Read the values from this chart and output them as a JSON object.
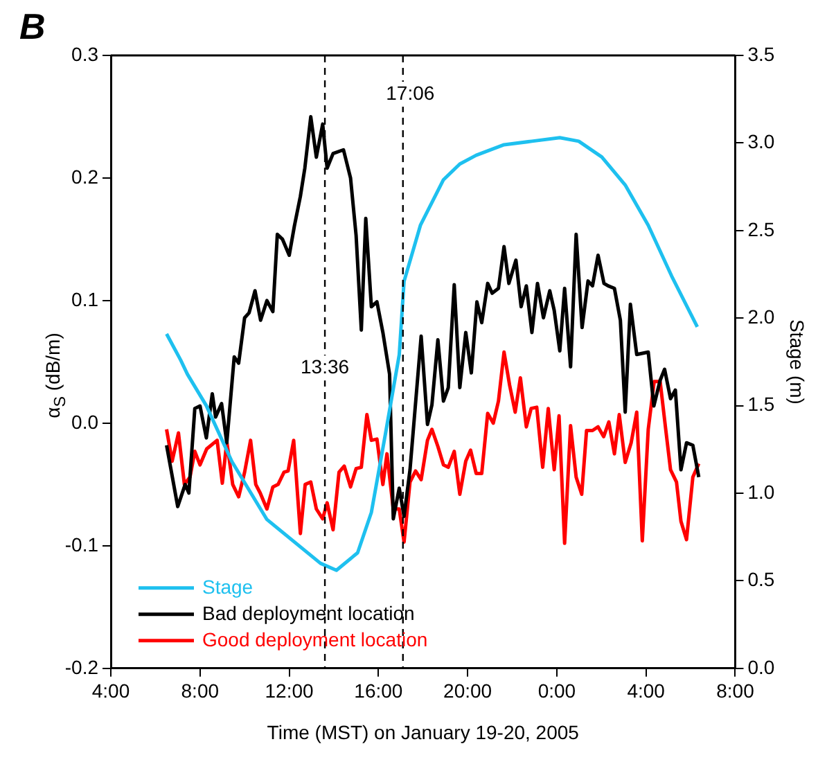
{
  "chart_data": {
    "type": "line",
    "xlabel": "Time (MST) on January 19-20, 2005",
    "ylabel": "α$_{S}$ (dB/m)",
    "y2label": "Stage (m)",
    "annotations": [
      "B"
    ],
    "xlim": [
      "2005-01-19T04:00",
      "2005-01-20T08:00"
    ],
    "xticks": [
      {
        "value": "2005-01-19T04:00",
        "label": "4:00"
      },
      {
        "value": "2005-01-19T08:00",
        "label": "8:00"
      },
      {
        "value": "2005-01-19T12:00",
        "label": "12:00"
      },
      {
        "value": "2005-01-19T16:00",
        "label": "16:00"
      },
      {
        "value": "2005-01-19T20:00",
        "label": "20:00"
      },
      {
        "value": "2005-01-20T00:00",
        "label": "0:00"
      },
      {
        "value": "2005-01-20T04:00",
        "label": "4:00"
      },
      {
        "value": "2005-01-20T08:00",
        "label": "8:00"
      }
    ],
    "ylim": [
      -0.2,
      0.3
    ],
    "yticks": [
      -0.2,
      -0.1,
      {
        "value": 0,
        "label": "0.0"
      },
      0.1,
      0.2,
      0.3
    ],
    "y2lim": [
      0,
      3.5
    ],
    "y2ticks": [
      {
        "value": 0,
        "label": "0.0"
      },
      {
        "value": 0.5,
        "label": "0.5"
      },
      {
        "value": 1,
        "label": "1.0"
      },
      {
        "value": 1.5,
        "label": "1.5"
      },
      {
        "value": 2,
        "label": "2.0"
      },
      {
        "value": 2.5,
        "label": "2.5"
      },
      {
        "value": 3,
        "label": "3.0"
      },
      {
        "value": 3.5,
        "label": "3.5"
      }
    ],
    "ref_lines": [
      {
        "axis": "x",
        "value": "2005-01-19T13:36",
        "label": "13:36",
        "color": "#000000",
        "line_style": "dashed"
      },
      {
        "axis": "x",
        "value": "2005-01-19T17:06",
        "label": "17:06",
        "color": "#000000",
        "line_style": "dashed"
      }
    ],
    "grid": false,
    "legend": "bottom left",
    "marker": "none",
    "line_style": "solid",
    "series": [
      {
        "name": "Stage",
        "color": "#1ec0ef",
        "axis": "y2",
        "x": [
          "2005-01-19T06:30",
          "2005-01-19T07:08",
          "2005-01-19T07:26",
          "2005-01-19T08:17",
          "2005-01-19T09:26",
          "2005-01-19T11:00",
          "2005-01-19T13:24",
          "2005-01-19T14:07",
          "2005-01-19T15:04",
          "2005-01-19T15:41",
          "2005-01-19T16:19",
          "2005-01-19T16:56",
          "2005-01-19T17:09",
          "2005-01-19T17:53",
          "2005-01-19T18:55",
          "2005-01-19T19:39",
          "2005-01-19T20:23",
          "2005-01-19T21:38",
          "2005-01-19T22:53",
          "2005-01-20T00:08",
          "2005-01-20T00:59",
          "2005-01-20T02:01",
          "2005-01-20T03:04",
          "2005-01-20T04:06",
          "2005-01-20T05:09",
          "2005-01-20T06:18"
        ],
        "values": [
          1.91,
          1.76,
          1.68,
          1.5,
          1.18,
          0.85,
          0.6,
          0.56,
          0.66,
          0.89,
          1.34,
          1.79,
          2.21,
          2.53,
          2.79,
          2.88,
          2.93,
          2.99,
          3.01,
          3.03,
          3.01,
          2.92,
          2.76,
          2.53,
          2.24,
          1.95
        ]
      },
      {
        "name": "Bad deployment location",
        "color": "#000000",
        "x": [
          "2005-01-19T06:30",
          "2005-01-19T07:00",
          "2005-01-19T07:20",
          "2005-01-19T07:30",
          "2005-01-19T07:46",
          "2005-01-19T08:00",
          "2005-01-19T08:17",
          "2005-01-19T08:33",
          "2005-01-19T08:42",
          "2005-01-19T08:58",
          "2005-01-19T09:12",
          "2005-01-19T09:32",
          "2005-01-19T09:44",
          "2005-01-19T10:00",
          "2005-01-19T10:12",
          "2005-01-19T10:28",
          "2005-01-19T10:43",
          "2005-01-19T11:00",
          "2005-01-19T11:16",
          "2005-01-19T11:28",
          "2005-01-19T11:42",
          "2005-01-19T12:00",
          "2005-01-19T12:14",
          "2005-01-19T12:30",
          "2005-01-19T12:42",
          "2005-01-19T12:58",
          "2005-01-19T13:13",
          "2005-01-19T13:30",
          "2005-01-19T13:42",
          "2005-01-19T13:58",
          "2005-01-19T14:26",
          "2005-01-19T14:45",
          "2005-01-19T15:00",
          "2005-01-19T15:14",
          "2005-01-19T15:26",
          "2005-01-19T15:41",
          "2005-01-19T15:56",
          "2005-01-19T16:12",
          "2005-01-19T16:30",
          "2005-01-19T16:40",
          "2005-01-19T16:56",
          "2005-01-19T17:09",
          "2005-01-19T17:25",
          "2005-01-19T17:55",
          "2005-01-19T18:12",
          "2005-01-19T18:24",
          "2005-01-19T18:40",
          "2005-01-19T18:55",
          "2005-01-19T19:08",
          "2005-01-19T19:24",
          "2005-01-19T19:39",
          "2005-01-19T19:55",
          "2005-01-19T20:10",
          "2005-01-19T20:25",
          "2005-01-19T20:38",
          "2005-01-19T20:54",
          "2005-01-19T21:06",
          "2005-01-19T21:23",
          "2005-01-19T21:38",
          "2005-01-19T21:51",
          "2005-01-19T22:10",
          "2005-01-19T22:24",
          "2005-01-19T22:38",
          "2005-01-19T22:53",
          "2005-01-19T23:08",
          "2005-01-19T23:24",
          "2005-01-19T23:41",
          "2005-01-19T23:53",
          "2005-01-20T00:08",
          "2005-01-20T00:21",
          "2005-01-20T00:37",
          "2005-01-20T00:52",
          "2005-01-20T01:08",
          "2005-01-20T01:24",
          "2005-01-20T01:36",
          "2005-01-20T01:51",
          "2005-01-20T02:07",
          "2005-01-20T02:18",
          "2005-01-20T02:35",
          "2005-01-20T02:51",
          "2005-01-20T03:04",
          "2005-01-20T03:18",
          "2005-01-20T03:35",
          "2005-01-20T04:06",
          "2005-01-20T04:21",
          "2005-01-20T04:38",
          "2005-01-20T04:50",
          "2005-01-20T05:06",
          "2005-01-20T05:19",
          "2005-01-20T05:34",
          "2005-01-20T05:49",
          "2005-01-20T06:06",
          "2005-01-20T06:22"
        ],
        "values": [
          -0.018,
          -0.068,
          -0.05,
          -0.057,
          0.012,
          0.014,
          -0.012,
          0.024,
          0.005,
          0.016,
          -0.016,
          0.054,
          0.049,
          0.086,
          0.09,
          0.108,
          0.084,
          0.1,
          0.091,
          0.154,
          0.15,
          0.137,
          0.161,
          0.185,
          0.208,
          0.25,
          0.217,
          0.244,
          0.208,
          0.22,
          0.223,
          0.2,
          0.153,
          0.076,
          0.167,
          0.095,
          0.099,
          0.074,
          0.04,
          -0.078,
          -0.053,
          -0.076,
          -0.038,
          0.071,
          -0.001,
          0.015,
          0.068,
          0.018,
          0.029,
          0.113,
          0.029,
          0.074,
          0.041,
          0.099,
          0.082,
          0.114,
          0.106,
          0.11,
          0.144,
          0.114,
          0.133,
          0.095,
          0.112,
          0.074,
          0.114,
          0.086,
          0.108,
          0.092,
          0.059,
          0.11,
          0.046,
          0.154,
          0.078,
          0.116,
          0.112,
          0.137,
          0.114,
          0.112,
          0.11,
          0.084,
          0.009,
          0.097,
          0.056,
          0.058,
          0.014,
          0.035,
          0.044,
          0.02,
          0.027,
          -0.038,
          -0.016,
          -0.018,
          -0.044
        ]
      },
      {
        "name": "Good deployment location",
        "color": "#ff0000",
        "x": [
          "2005-01-19T06:30",
          "2005-01-19T06:45",
          "2005-01-19T07:02",
          "2005-01-19T07:18",
          "2005-01-19T07:33",
          "2005-01-19T07:46",
          "2005-01-19T08:00",
          "2005-01-19T08:18",
          "2005-01-19T08:46",
          "2005-01-19T09:00",
          "2005-01-19T09:12",
          "2005-01-19T09:28",
          "2005-01-19T09:44",
          "2005-01-19T10:00",
          "2005-01-19T10:16",
          "2005-01-19T10:30",
          "2005-01-19T10:42",
          "2005-01-19T11:00",
          "2005-01-19T11:16",
          "2005-01-19T11:30",
          "2005-01-19T11:46",
          "2005-01-19T11:57",
          "2005-01-19T12:12",
          "2005-01-19T12:30",
          "2005-01-19T12:43",
          "2005-01-19T12:58",
          "2005-01-19T13:13",
          "2005-01-19T13:30",
          "2005-01-19T13:42",
          "2005-01-19T13:58",
          "2005-01-19T14:14",
          "2005-01-19T14:28",
          "2005-01-19T14:45",
          "2005-01-19T15:00",
          "2005-01-19T15:14",
          "2005-01-19T15:29",
          "2005-01-19T15:41",
          "2005-01-19T15:56",
          "2005-01-19T16:12",
          "2005-01-19T16:23",
          "2005-01-19T16:40",
          "2005-01-19T16:56",
          "2005-01-19T17:09",
          "2005-01-19T17:25",
          "2005-01-19T17:40",
          "2005-01-19T17:55",
          "2005-01-19T18:12",
          "2005-01-19T18:24",
          "2005-01-19T18:40",
          "2005-01-19T18:55",
          "2005-01-19T19:08",
          "2005-01-19T19:24",
          "2005-01-19T19:39",
          "2005-01-19T19:55",
          "2005-01-19T20:08",
          "2005-01-19T20:23",
          "2005-01-19T20:38",
          "2005-01-19T20:54",
          "2005-01-19T21:09",
          "2005-01-19T21:23",
          "2005-01-19T21:38",
          "2005-01-19T21:53",
          "2005-01-19T22:08",
          "2005-01-19T22:22",
          "2005-01-19T22:38",
          "2005-01-19T22:51",
          "2005-01-19T23:06",
          "2005-01-19T23:22",
          "2005-01-19T23:37",
          "2005-01-19T23:53",
          "2005-01-20T00:06",
          "2005-01-20T00:21",
          "2005-01-20T00:37",
          "2005-01-20T00:52",
          "2005-01-20T01:07",
          "2005-01-20T01:20",
          "2005-01-20T01:36",
          "2005-01-20T01:51",
          "2005-01-20T02:06",
          "2005-01-20T02:20",
          "2005-01-20T02:35",
          "2005-01-20T02:48",
          "2005-01-20T03:04",
          "2005-01-20T03:20",
          "2005-01-20T03:35",
          "2005-01-20T03:50",
          "2005-01-20T04:06",
          "2005-01-20T04:22",
          "2005-01-20T04:38",
          "2005-01-20T04:53",
          "2005-01-20T05:06",
          "2005-01-20T05:22",
          "2005-01-20T05:34",
          "2005-01-20T05:49",
          "2005-01-20T06:06",
          "2005-01-20T06:22"
        ],
        "values": [
          -0.005,
          -0.031,
          -0.008,
          -0.05,
          -0.044,
          -0.023,
          -0.034,
          -0.021,
          -0.014,
          -0.049,
          -0.015,
          -0.05,
          -0.06,
          -0.04,
          -0.014,
          -0.05,
          -0.057,
          -0.07,
          -0.052,
          -0.05,
          -0.04,
          -0.039,
          -0.014,
          -0.09,
          -0.05,
          -0.048,
          -0.07,
          -0.078,
          -0.065,
          -0.087,
          -0.04,
          -0.035,
          -0.052,
          -0.037,
          -0.036,
          0.007,
          -0.014,
          -0.013,
          -0.05,
          -0.025,
          -0.07,
          -0.07,
          -0.097,
          -0.048,
          -0.039,
          -0.046,
          -0.014,
          -0.005,
          -0.019,
          -0.034,
          -0.036,
          -0.023,
          -0.058,
          -0.031,
          -0.022,
          -0.041,
          -0.041,
          0.008,
          0.0,
          0.018,
          0.058,
          0.031,
          0.009,
          0.037,
          -0.003,
          0.012,
          0.013,
          -0.036,
          0.012,
          -0.038,
          0.006,
          -0.098,
          -0.002,
          -0.044,
          -0.058,
          -0.006,
          -0.006,
          -0.003,
          -0.011,
          0.001,
          -0.025,
          0.007,
          -0.032,
          -0.016,
          0.009,
          -0.096,
          -0.005,
          0.034,
          0.034,
          -0.005,
          -0.038,
          -0.048,
          -0.08,
          -0.095,
          -0.044,
          -0.033
        ]
      }
    ]
  }
}
